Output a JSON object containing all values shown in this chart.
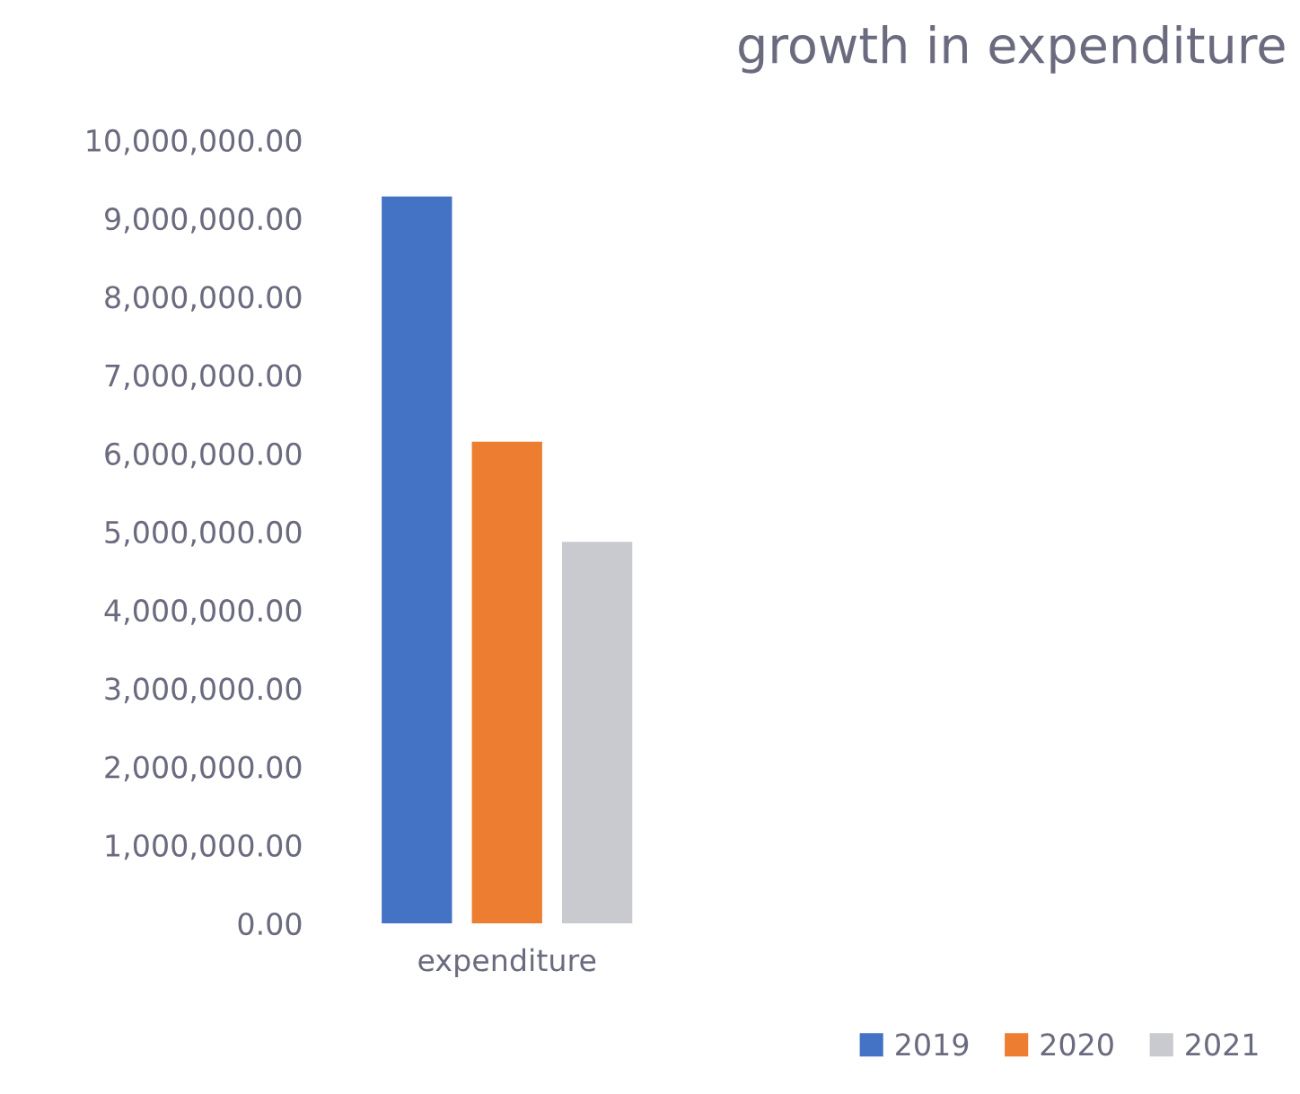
{
  "chart_data": {
    "type": "bar",
    "title": "growth in expenditure",
    "categories": [
      "expenditure"
    ],
    "series": [
      {
        "name": "2019",
        "color": "#4472c4",
        "values": [
          9280000
        ]
      },
      {
        "name": "2020",
        "color": "#ed7d31",
        "values": [
          6150000
        ]
      },
      {
        "name": "2021",
        "color": "#c9cad0",
        "values": [
          4870000
        ]
      }
    ],
    "ylim": [
      0,
      10000000
    ],
    "yticks": [
      {
        "value": 0,
        "label": "0.00"
      },
      {
        "value": 1000000,
        "label": "1,000,000.00"
      },
      {
        "value": 2000000,
        "label": "2,000,000.00"
      },
      {
        "value": 3000000,
        "label": "3,000,000.00"
      },
      {
        "value": 4000000,
        "label": "4,000,000.00"
      },
      {
        "value": 5000000,
        "label": "5,000,000.00"
      },
      {
        "value": 6000000,
        "label": "6,000,000.00"
      },
      {
        "value": 7000000,
        "label": "7,000,000.00"
      },
      {
        "value": 8000000,
        "label": "8,000,000.00"
      },
      {
        "value": 9000000,
        "label": "9,000,000.00"
      },
      {
        "value": 10000000,
        "label": "10,000,000.00"
      }
    ],
    "grid": false,
    "legend": "bottom right"
  }
}
